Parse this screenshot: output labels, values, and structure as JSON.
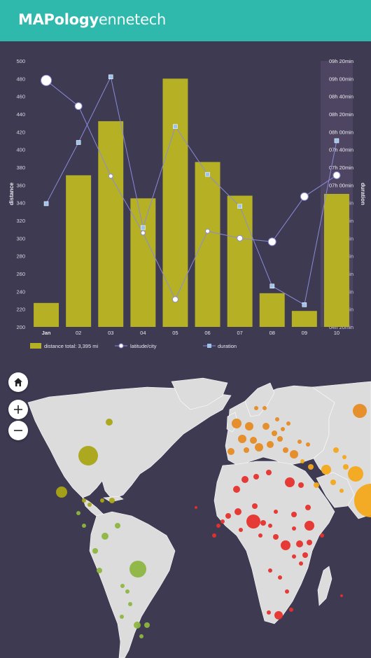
{
  "header": {
    "brand_bold": "MAPology",
    "brand_light": "ennetech"
  },
  "colors": {
    "bar": "#b5b024",
    "line": "#8b8bd9",
    "duration_marker": "#9cc3ee",
    "background": "#3d3a52",
    "highlight_band": "#5b4f6e"
  },
  "chart_data": {
    "type": "bar",
    "categories": [
      "Jan",
      "02",
      "03",
      "04",
      "05",
      "06",
      "07",
      "08",
      "09",
      "10"
    ],
    "ylabel": "distance",
    "y2label": "duration",
    "ylim": [
      200,
      500
    ],
    "yticks": [
      200,
      220,
      240,
      260,
      280,
      300,
      320,
      340,
      360,
      380,
      400,
      420,
      440,
      460,
      480,
      500
    ],
    "y2ticks": [
      "04h 20min",
      "04h 40min",
      "05h 00min",
      "05h 20min",
      "05h 40min",
      "06h 00min",
      "06h 20min",
      "06h 40min",
      "07h 00min",
      "07h 20min",
      "07h 40min",
      "08h 00min",
      "08h 20min",
      "08h 40min",
      "09h 00min",
      "09h 20min"
    ],
    "series": [
      {
        "name": "distance",
        "kind": "bar",
        "values": [
          227,
          371,
          432,
          345,
          480,
          386,
          348,
          238,
          218,
          350
        ]
      },
      {
        "name": "latitude/city",
        "kind": "line-circle",
        "values": [
          478,
          449,
          370,
          306,
          231,
          308,
          300,
          296,
          347,
          371
        ],
        "marker_size": [
          12,
          7,
          3,
          3,
          5,
          3,
          5,
          8,
          8,
          7
        ]
      },
      {
        "name": "duration",
        "kind": "line-square",
        "values": [
          339,
          408,
          482,
          312,
          426,
          372,
          336,
          246,
          225,
          410
        ]
      }
    ],
    "legend": {
      "placement": "bottom-left",
      "items": [
        "distance total: 3,395 mi",
        "latitude/city",
        "duration"
      ]
    },
    "grid": false
  },
  "map": {
    "controls": {
      "home": "home-icon",
      "zoom_in": "plus-icon",
      "zoom_out": "minus-icon"
    },
    "land_color": "#dcdcdc",
    "bubble_colors": {
      "green": "#8cb53f",
      "olive": "#a9a515",
      "orange": "#e58a23",
      "amber": "#f3a61a",
      "red": "#e5302b"
    }
  }
}
